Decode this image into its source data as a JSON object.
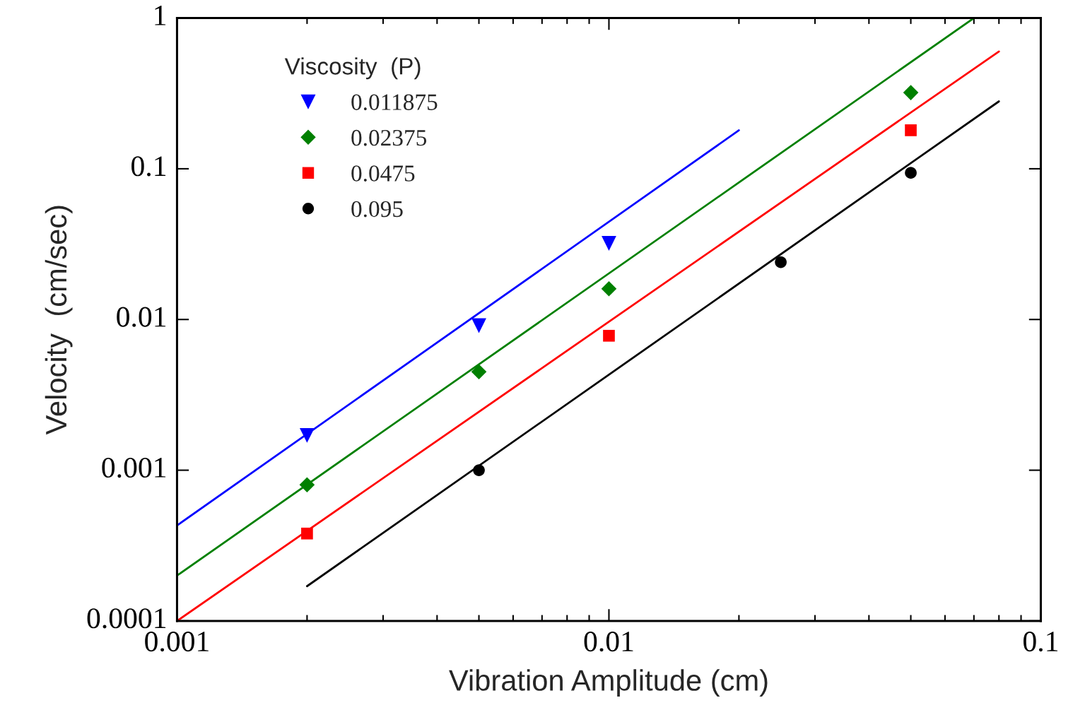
{
  "chart_data": {
    "type": "scatter",
    "xlabel": "Vibration Amplitude (cm)",
    "ylabel": "Velocity  (cm/sec)",
    "legend_title": "Viscosity  (P)",
    "log": "xy",
    "grid": false,
    "legend": "top left",
    "xlim": [
      0.001,
      0.1
    ],
    "ylim": [
      0.0001,
      1
    ],
    "xticks": [
      0.001,
      0.01,
      0.1
    ],
    "yticks": [
      0.0001,
      0.001,
      0.01,
      0.1,
      1
    ],
    "series": [
      {
        "name": "0.011875",
        "marker": "triangle",
        "color": "#0000ff",
        "x": [
          0.002,
          0.005,
          0.01
        ],
        "values": [
          0.0017,
          0.0091,
          0.032
        ]
      },
      {
        "name": "0.02375",
        "marker": "diamond",
        "color": "#008000",
        "x": [
          0.002,
          0.005,
          0.01,
          0.05
        ],
        "values": [
          0.0008,
          0.0045,
          0.016,
          0.32
        ]
      },
      {
        "name": "0.0475",
        "marker": "square",
        "color": "#ff0000",
        "x": [
          0.002,
          0.01,
          0.05
        ],
        "values": [
          0.00038,
          0.0078,
          0.18
        ]
      },
      {
        "name": "0.095",
        "marker": "circle",
        "color": "#000000",
        "x": [
          0.005,
          0.025,
          0.05
        ],
        "values": [
          0.001,
          0.024,
          0.094
        ]
      },
      {
        "type": "line",
        "color": "#0000ff",
        "x": [
          0.001,
          0.02
        ],
        "values": [
          0.00043,
          0.18
        ]
      },
      {
        "type": "line",
        "color": "#008000",
        "x": [
          0.001,
          0.07
        ],
        "values": [
          0.0002,
          1
        ]
      },
      {
        "type": "line",
        "color": "#ff0000",
        "x": [
          0.001,
          0.08
        ],
        "values": [
          0.0001,
          0.6
        ]
      },
      {
        "type": "line",
        "color": "#000000",
        "x": [
          0.002,
          0.08
        ],
        "values": [
          0.00017,
          0.28
        ]
      }
    ]
  }
}
